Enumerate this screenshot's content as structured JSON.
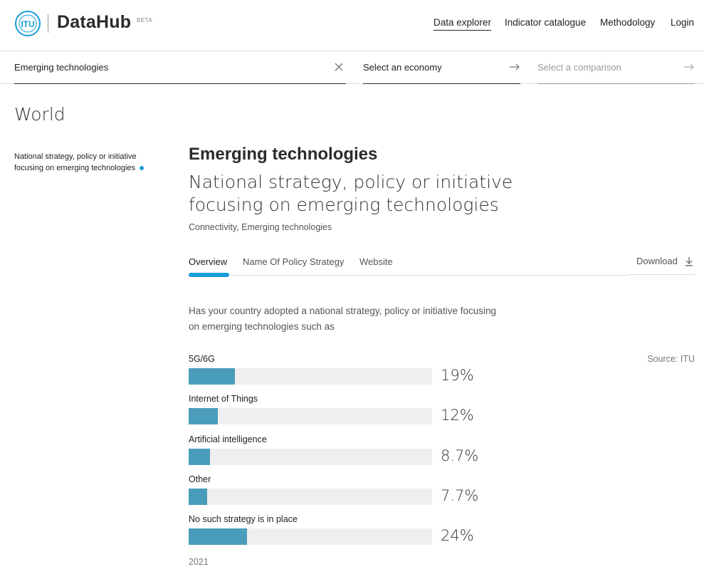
{
  "header": {
    "logo_text": "ITU",
    "brand": "DataHub",
    "beta": "BETA",
    "nav": [
      {
        "label": "Data explorer",
        "active": true
      },
      {
        "label": "Indicator catalogue",
        "active": false
      },
      {
        "label": "Methodology",
        "active": false
      },
      {
        "label": "Login",
        "active": false
      }
    ]
  },
  "selectors": {
    "topic": {
      "value": "Emerging technologies",
      "icon": "close-icon"
    },
    "economy": {
      "value": "Select an economy",
      "icon": "arrow-right-icon"
    },
    "comparison": {
      "placeholder": "Select a comparison",
      "icon": "arrow-right-icon"
    }
  },
  "page_title": "World",
  "sidebar": {
    "items": [
      {
        "label": "National strategy, policy or initiative focusing on emerging technologies",
        "active": true
      }
    ]
  },
  "main": {
    "category": "Emerging technologies",
    "indicator_title": "National strategy, policy or initiative focusing on emerging technologies",
    "tags": "Connectivity, Emerging technologies",
    "tabs": [
      {
        "label": "Overview",
        "active": true
      },
      {
        "label": "Name Of Policy Strategy",
        "active": false
      },
      {
        "label": "Website",
        "active": false
      }
    ],
    "download_label": "Download",
    "question": "Has your country adopted a national strategy, policy or initiative focusing on emerging technologies such as",
    "source": "Source: ITU",
    "year": "2021"
  },
  "chart_data": {
    "type": "bar",
    "orientation": "horizontal",
    "categories": [
      "5G/6G",
      "Internet of Things",
      "Artificial intelligence",
      "Other",
      "No such strategy is in place"
    ],
    "values": [
      19,
      12,
      8.7,
      7.7,
      24
    ],
    "value_labels": [
      "19%",
      "12%",
      "8.7%",
      "7.7%",
      "24%"
    ],
    "unit": "%",
    "xlim": [
      0,
      100
    ],
    "bar_color": "#4a9dba",
    "track_color": "#efefef"
  },
  "colors": {
    "accent": "#1a9cd8",
    "text": "#2b2b2b"
  }
}
